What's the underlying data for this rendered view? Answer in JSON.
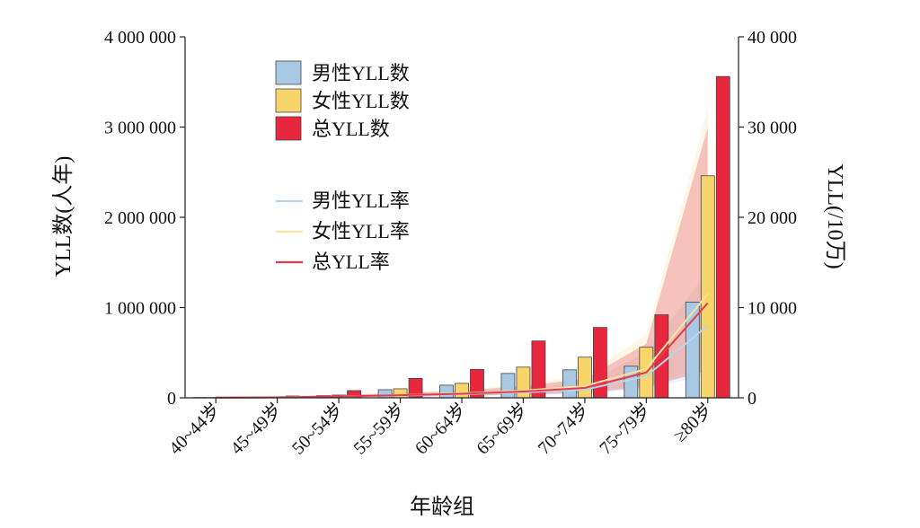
{
  "chart_data": {
    "type": "bar",
    "categories": [
      "40~44岁",
      "45~49岁",
      "50~54岁",
      "55~59岁",
      "60~64岁",
      "65~69岁",
      "70~74岁",
      "75~79岁",
      "≥80岁"
    ],
    "series": [
      {
        "name": "男性YLL数",
        "axis": "left",
        "color": "#a8c8e4",
        "values": [
          3000,
          8000,
          25000,
          90000,
          140000,
          270000,
          310000,
          350000,
          1060000
        ]
      },
      {
        "name": "女性YLL数",
        "axis": "left",
        "color": "#f8d56a",
        "values": [
          3000,
          8000,
          30000,
          100000,
          160000,
          340000,
          450000,
          560000,
          2460000
        ]
      },
      {
        "name": "总YLL数",
        "axis": "left",
        "color": "#e8273e",
        "values": [
          10000,
          20000,
          80000,
          215000,
          315000,
          630000,
          780000,
          920000,
          3560000
        ]
      }
    ],
    "lines": [
      {
        "name": "男性YLL率",
        "axis": "right",
        "color": "#b9d4ec",
        "values": [
          20,
          50,
          150,
          250,
          400,
          600,
          900,
          2400,
          8000
        ],
        "band_low": [
          10,
          30,
          80,
          120,
          200,
          300,
          450,
          1000,
          2500
        ],
        "band_high": [
          40,
          90,
          300,
          450,
          700,
          1100,
          1700,
          5000,
          14000
        ]
      },
      {
        "name": "女性YLL率",
        "axis": "right",
        "color": "#f8e2a0",
        "values": [
          20,
          50,
          150,
          300,
          500,
          800,
          1300,
          3200,
          11500
        ],
        "band_low": [
          10,
          30,
          80,
          150,
          250,
          400,
          650,
          1400,
          3500
        ],
        "band_high": [
          40,
          100,
          350,
          550,
          900,
          1500,
          2500,
          7000,
          32000
        ]
      },
      {
        "name": "总YLL率",
        "axis": "right",
        "color": "#e53a4e",
        "values": [
          20,
          50,
          150,
          280,
          450,
          700,
          1100,
          2800,
          10500
        ],
        "band_low": [
          10,
          30,
          80,
          140,
          220,
          350,
          550,
          1200,
          3000
        ],
        "band_high": [
          40,
          95,
          320,
          500,
          800,
          1300,
          2100,
          6000,
          30000
        ]
      }
    ],
    "y_left": {
      "label": "YLL数(人年)",
      "lim": [
        0,
        4000000
      ],
      "ticks": [
        0,
        1000000,
        2000000,
        3000000,
        4000000
      ],
      "tick_labels": [
        "0",
        "1 000 000",
        "2 000 000",
        "3 000 000",
        "4 000 000"
      ]
    },
    "y_right": {
      "label": "YLL(/10万)",
      "lim": [
        0,
        40000
      ],
      "ticks": [
        0,
        10000,
        20000,
        30000,
        40000
      ],
      "tick_labels": [
        "0",
        "10 000",
        "20 000",
        "30 000",
        "40 000"
      ]
    },
    "xlabel": "年龄组",
    "legend_position": "upper-left",
    "grid": false
  }
}
